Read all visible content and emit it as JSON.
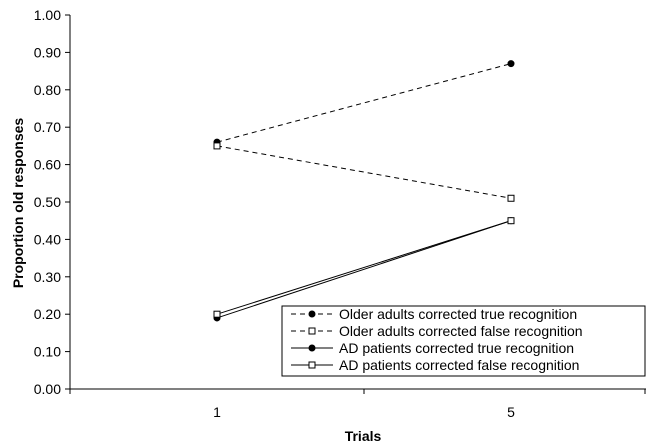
{
  "chart_data": {
    "type": "line",
    "title": "",
    "xlabel": "Trials",
    "ylabel": "Proportion old responses",
    "categories": [
      "1",
      "5"
    ],
    "ylim": [
      0,
      1
    ],
    "yticks": [
      "0.00",
      "0.10",
      "0.20",
      "0.30",
      "0.40",
      "0.50",
      "0.60",
      "0.70",
      "0.80",
      "0.90",
      "1.00"
    ],
    "grid": false,
    "legend_position": "bottom-right",
    "series": [
      {
        "name": "Older adults corrected true recognition",
        "values": [
          0.66,
          0.87
        ],
        "line": "dashed",
        "marker": "filled-circle"
      },
      {
        "name": "Older adults corrected false recognition",
        "values": [
          0.65,
          0.51
        ],
        "line": "dashed",
        "marker": "open-square"
      },
      {
        "name": "AD patients corrected true recognition",
        "values": [
          0.19,
          0.45
        ],
        "line": "solid",
        "marker": "filled-circle"
      },
      {
        "name": "AD patients corrected false recognition",
        "values": [
          0.2,
          0.45
        ],
        "line": "solid",
        "marker": "open-square"
      }
    ]
  }
}
